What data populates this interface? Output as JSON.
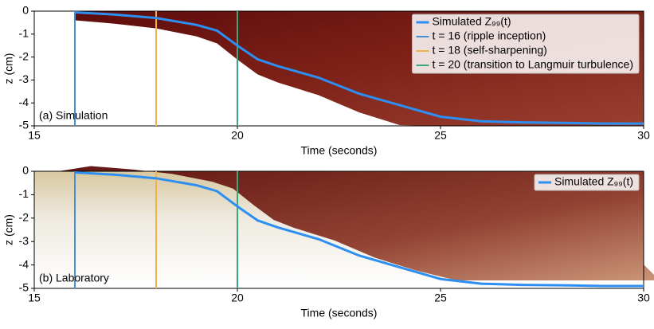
{
  "chart_data": [
    {
      "type": "line",
      "annotation": "(a) Simulation",
      "xlabel": "Time (seconds)",
      "ylabel": "z (cm)",
      "xlim": [
        15,
        30
      ],
      "xticks": [
        15,
        20,
        25,
        30
      ],
      "ylim": [
        -5,
        0
      ],
      "yticks": [
        -5,
        -4,
        -3,
        -2,
        -1,
        0
      ],
      "legend": "upper right",
      "series": [
        {
          "name": "Simulated Z₉₉(t)",
          "color": "#2e8ff2",
          "x": [
            16,
            17,
            18,
            19,
            19.5,
            20,
            20.5,
            21,
            22,
            23,
            24,
            25,
            26,
            27,
            28,
            29,
            30
          ],
          "values": [
            -0.05,
            -0.15,
            -0.3,
            -0.6,
            -0.85,
            -1.5,
            -2.1,
            -2.4,
            -2.9,
            -3.6,
            -4.1,
            -4.6,
            -4.8,
            -4.85,
            -4.87,
            -4.9,
            -4.9
          ]
        }
      ],
      "vlines": [
        {
          "name": "t = 16 (ripple inception)",
          "color": "#4a8fd0",
          "x": 16
        },
        {
          "name": "t = 18 (self-sharpening)",
          "color": "#f2b24a",
          "x": 18
        },
        {
          "name": "t = 20 (transition to Langmuir turbulence)",
          "color": "#3fa57c",
          "x": 20
        }
      ]
    },
    {
      "type": "line",
      "annotation": "(b) Laboratory",
      "xlabel": "Time (seconds)",
      "ylabel": "z (cm)",
      "xlim": [
        15,
        30
      ],
      "xticks": [
        15,
        20,
        25,
        30
      ],
      "ylim": [
        -5,
        0
      ],
      "yticks": [
        -5,
        -4,
        -3,
        -2,
        -1,
        0
      ],
      "legend": "upper right",
      "series": [
        {
          "name": "Simulated Z₉₉(t)",
          "color": "#2e8ff2",
          "x": [
            16,
            17,
            18,
            19,
            19.5,
            20,
            20.5,
            21,
            22,
            23,
            24,
            25,
            26,
            27,
            28,
            29,
            30
          ],
          "values": [
            -0.05,
            -0.15,
            -0.3,
            -0.6,
            -0.85,
            -1.5,
            -2.1,
            -2.4,
            -2.9,
            -3.6,
            -4.1,
            -4.6,
            -4.8,
            -4.85,
            -4.87,
            -4.9,
            -4.9
          ]
        }
      ],
      "vlines": [
        {
          "color": "#4a8fd0",
          "x": 16
        },
        {
          "color": "#f2b24a",
          "x": 18
        },
        {
          "color": "#3fa57c",
          "x": 20
        }
      ]
    }
  ]
}
